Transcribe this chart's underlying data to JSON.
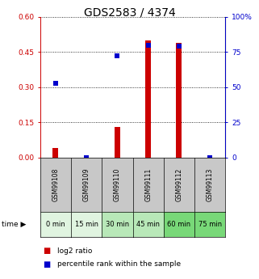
{
  "title": "GDS2583 / 4374",
  "samples": [
    "GSM99108",
    "GSM99109",
    "GSM99110",
    "GSM99111",
    "GSM99112",
    "GSM99113"
  ],
  "time_labels": [
    "0 min",
    "15 min",
    "30 min",
    "45 min",
    "60 min",
    "75 min"
  ],
  "log2_ratio": [
    0.04,
    0.0,
    0.13,
    0.5,
    0.49,
    0.0
  ],
  "percentile_rank": [
    53,
    0,
    72,
    80,
    79,
    0
  ],
  "left_ylim": [
    0,
    0.6
  ],
  "right_ylim": [
    0,
    100
  ],
  "left_yticks": [
    0,
    0.15,
    0.3,
    0.45,
    0.6
  ],
  "right_yticks": [
    0,
    25,
    50,
    75,
    100
  ],
  "bar_color": "#cc0000",
  "dot_color": "#0000cc",
  "grid_color": "#000000",
  "time_bg_colors": [
    "#e0f4e0",
    "#e0f4e0",
    "#b8e8b8",
    "#b8e8b8",
    "#78d878",
    "#78d878"
  ],
  "sample_bg_color": "#c8c8c8",
  "bar_width": 0.18,
  "dot_size": 22,
  "title_fontsize": 10,
  "tick_fontsize": 6.5,
  "sample_fontsize": 5.5,
  "time_fontsize": 6
}
